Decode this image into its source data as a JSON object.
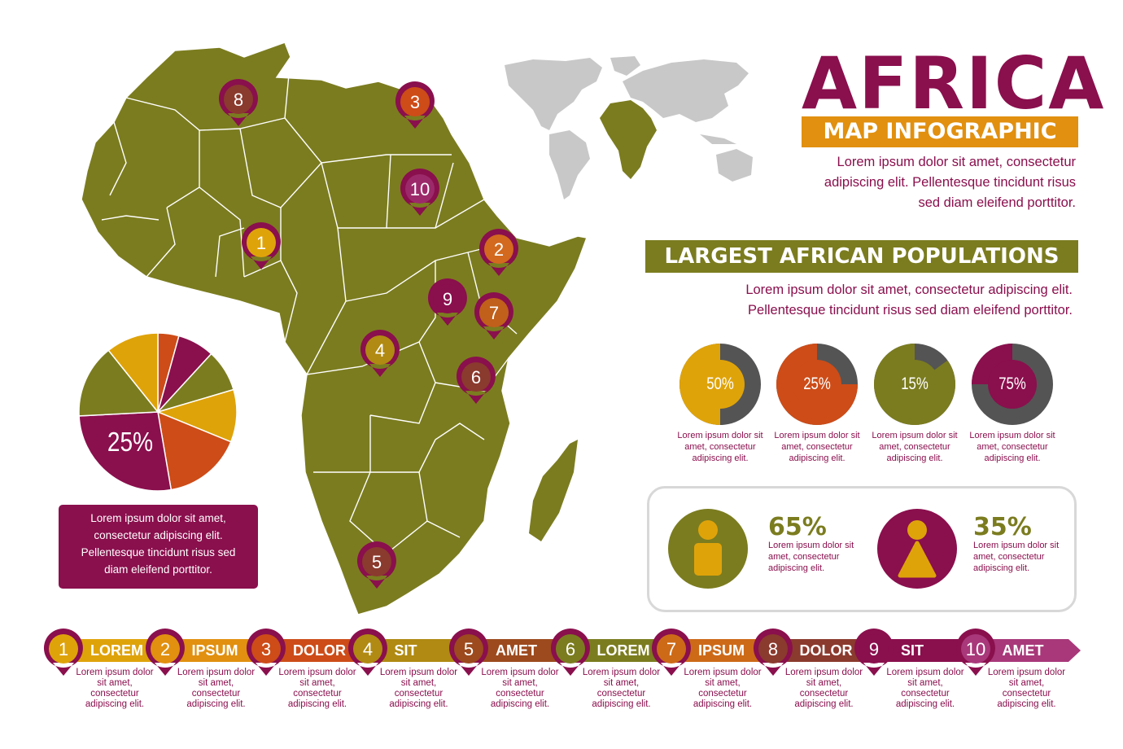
{
  "header": {
    "title": "AFRICA",
    "subtitle": "MAP INFOGRAPHIC",
    "intro_lines": [
      "Lorem ipsum dolor sit amet, consectetur",
      "adipiscing elit. Pellentesque tincidunt risus",
      "sed diam eleifend porttitor."
    ]
  },
  "populations": {
    "heading": "LARGEST AFRICAN POPULATIONS",
    "text_lines": [
      "Lorem ipsum dolor sit amet, consectetur adipiscing elit.",
      "Pellentesque tincidunt risus sed diam eleifend porttitor."
    ],
    "donuts": [
      {
        "label": "50%",
        "value": 50,
        "color": "#dfa30a",
        "rest_color": "#545454",
        "caption_lines": [
          "Lorem ipsum dolor sit",
          "amet, consectetur",
          "adipiscing elit."
        ]
      },
      {
        "label": "25%",
        "value": 75,
        "color": "#cd4c18",
        "rest_color": "#545454",
        "caption_lines": [
          "Lorem ipsum dolor sit",
          "amet, consectetur",
          "adipiscing elit."
        ]
      },
      {
        "label": "15%",
        "value": 85,
        "color": "#7b7c1f",
        "rest_color": "#545454",
        "caption_lines": [
          "Lorem ipsum dolor sit",
          "amet, consectetur",
          "adipiscing elit."
        ]
      },
      {
        "label": "75%",
        "value": 25,
        "color": "#8a0f4d",
        "rest_color": "#545454",
        "caption_lines": [
          "Lorem ipsum dolor sit",
          "amet, consectetur",
          "adipiscing elit."
        ]
      }
    ]
  },
  "gender": [
    {
      "pct": "65%",
      "color": "#7b7c1f",
      "icon": "male-icon",
      "text_lines": [
        "Lorem ipsum dolor sit",
        "amet, consectetur",
        "adipiscing elit."
      ]
    },
    {
      "pct": "35%",
      "color": "#8a0f4d",
      "icon": "female-icon",
      "text_lines": [
        "Lorem ipsum dolor sit",
        "amet, consectetur",
        "adipiscing elit."
      ]
    }
  ],
  "pie": {
    "label": "25%",
    "slices": [
      {
        "value": 4,
        "color": "#cd4c18"
      },
      {
        "value": 7,
        "color": "#8a0f4d"
      },
      {
        "value": 8,
        "color": "#7b7c1f"
      },
      {
        "value": 10,
        "color": "#dfa30a"
      },
      {
        "value": 15,
        "color": "#cd4c18"
      },
      {
        "value": 25,
        "color": "#8a0f4d"
      },
      {
        "value": 14,
        "color": "#7b7c1f"
      },
      {
        "value": 10,
        "color": "#dfa30a"
      }
    ]
  },
  "left_box_lines": [
    "Lorem ipsum dolor sit amet,",
    "consectetur adipiscing elit.",
    "Pellentesque tincidunt risus sed",
    "diam eleifend porttitor."
  ],
  "map_pins": [
    {
      "num": "8",
      "color": "#8b3a2e"
    },
    {
      "num": "3",
      "color": "#cd4c18"
    },
    {
      "num": "10",
      "color": "#9c2a6a"
    },
    {
      "num": "1",
      "color": "#dfa30a"
    },
    {
      "num": "2",
      "color": "#d2691e"
    },
    {
      "num": "9",
      "color": "#8a0f4d"
    },
    {
      "num": "7",
      "color": "#c0601a"
    },
    {
      "num": "4",
      "color": "#b08a12"
    },
    {
      "num": "6",
      "color": "#8b3a2e"
    },
    {
      "num": "5",
      "color": "#8b3a2e"
    }
  ],
  "timeline": [
    {
      "num": "1",
      "label": "LOREM",
      "color": "#dfa30a",
      "caption_lines": [
        "Lorem ipsum dolor",
        "sit amet,",
        "consectetur",
        "adipiscing elit."
      ]
    },
    {
      "num": "2",
      "label": "IPSUM",
      "color": "#e1900f",
      "caption_lines": [
        "Lorem ipsum dolor",
        "sit amet,",
        "consectetur",
        "adipiscing elit."
      ]
    },
    {
      "num": "3",
      "label": "DOLOR",
      "color": "#cd4c18",
      "caption_lines": [
        "Lorem ipsum dolor",
        "sit amet,",
        "consectetur",
        "adipiscing elit."
      ]
    },
    {
      "num": "4",
      "label": "SIT",
      "color": "#b08a12",
      "caption_lines": [
        "Lorem ipsum dolor",
        "sit amet,",
        "consectetur",
        "adipiscing elit."
      ]
    },
    {
      "num": "5",
      "label": "AMET",
      "color": "#9c4a1e",
      "caption_lines": [
        "Lorem ipsum dolor",
        "sit amet,",
        "consectetur",
        "adipiscing elit."
      ]
    },
    {
      "num": "6",
      "label": "LOREM",
      "color": "#7b7c1f",
      "caption_lines": [
        "Lorem ipsum dolor",
        "sit amet,",
        "consectetur",
        "adipiscing elit."
      ]
    },
    {
      "num": "7",
      "label": "IPSUM",
      "color": "#cd6a18",
      "caption_lines": [
        "Lorem ipsum dolor",
        "sit amet,",
        "consectetur",
        "adipiscing elit."
      ]
    },
    {
      "num": "8",
      "label": "DOLOR",
      "color": "#8b3a2e",
      "caption_lines": [
        "Lorem ipsum dolor",
        "sit amet,",
        "consectetur",
        "adipiscing elit."
      ]
    },
    {
      "num": "9",
      "label": "SIT",
      "color": "#8a0f4d",
      "caption_lines": [
        "Lorem ipsum dolor",
        "sit amet,",
        "consectetur",
        "adipiscing elit."
      ]
    },
    {
      "num": "10",
      "label": "AMET",
      "color": "#a8387a",
      "caption_lines": [
        "Lorem ipsum dolor",
        "sit amet,",
        "consectetur",
        "adipiscing elit."
      ]
    }
  ],
  "colors": {
    "olive": "#7b7c1f",
    "plum": "#8a0f4d",
    "orange": "#e1900f",
    "rust": "#cd4c18",
    "gold": "#dfa30a",
    "gray": "#c8c8c8"
  }
}
